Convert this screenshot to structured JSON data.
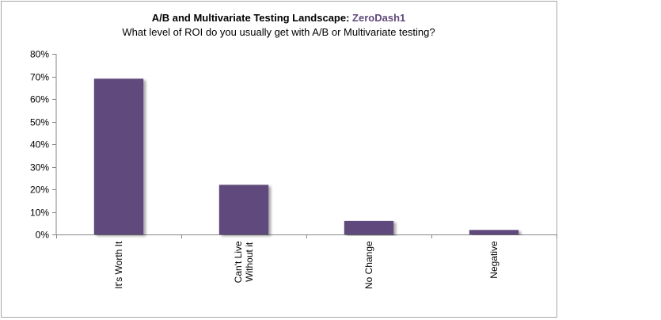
{
  "chart_data": {
    "type": "bar",
    "title_prefix": "A/B and Multivariate Testing Landscape: ",
    "title_brand": "ZeroDash1",
    "subtitle": "What level of ROI do you usually get with A/B or Multivariate testing?",
    "categories": [
      [
        "It's Worth It"
      ],
      [
        "Can't Live",
        "Without it"
      ],
      [
        "No Change"
      ],
      [
        "Negative"
      ]
    ],
    "values": [
      69,
      22,
      6,
      2
    ],
    "ylim": [
      0,
      80
    ],
    "yticks": [
      "0%",
      "10%",
      "20%",
      "30%",
      "40%",
      "50%",
      "60%",
      "70%",
      "80%"
    ],
    "grid": false,
    "bar_color": "#604a7b",
    "brand_color": "#604a7b"
  }
}
